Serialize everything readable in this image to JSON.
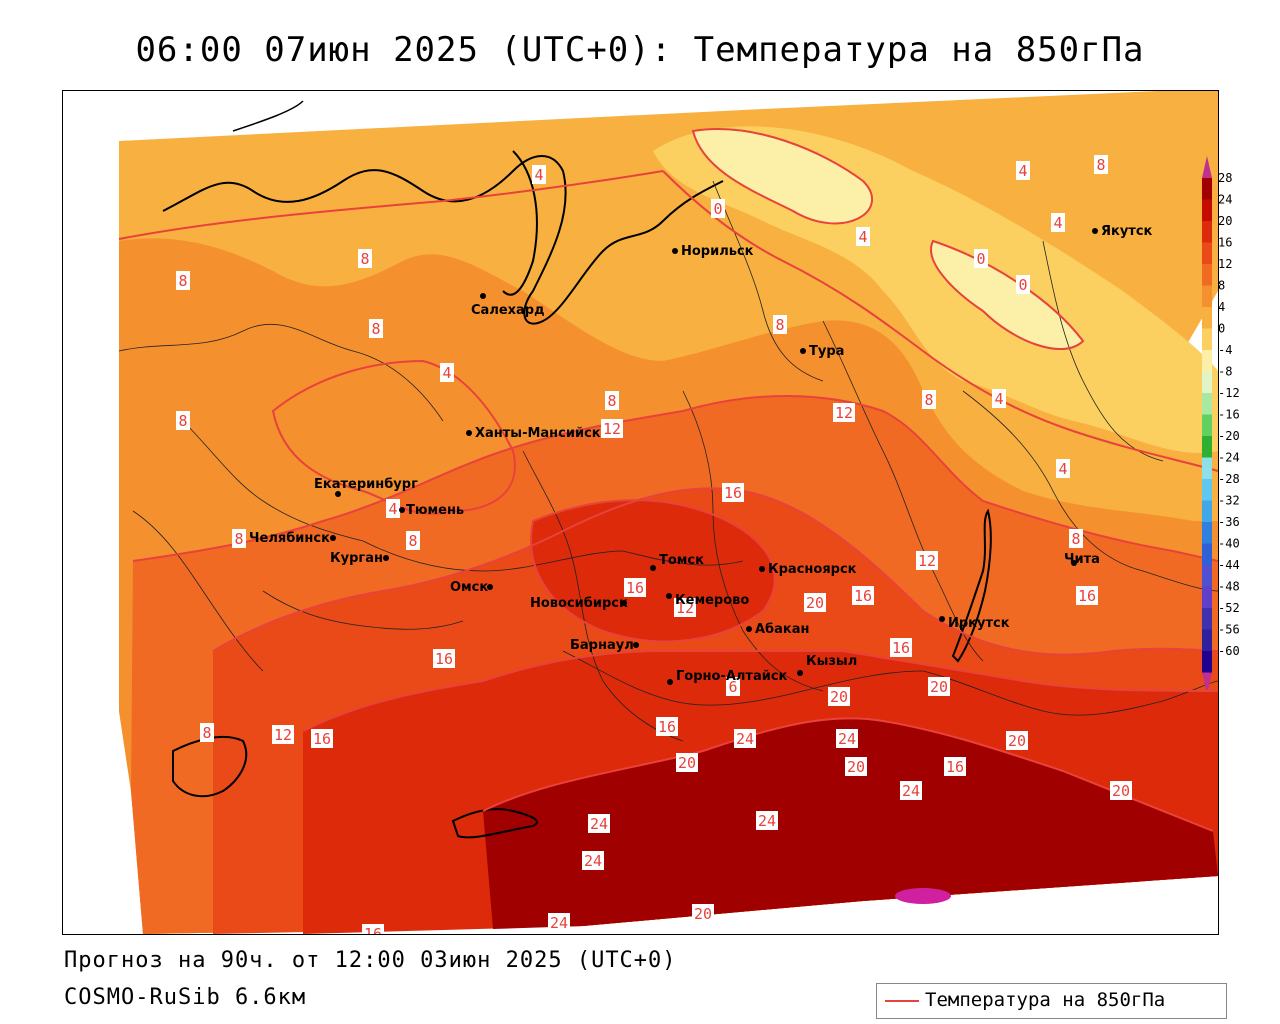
{
  "title": "06:00 07июн 2025 (UTC+0): Температура на 850гПа",
  "footer": {
    "forecast": "Прогноз на 90ч. от 12:00 03июн 2025 (UTC+0)",
    "model": "COSMO-RuSib 6.6км"
  },
  "legend": {
    "label": "Температура на 850гПа",
    "line_color": "#e8423c"
  },
  "colorbar": {
    "ticks": [
      "28",
      "24",
      "20",
      "16",
      "12",
      "8",
      "4",
      "0",
      "-4",
      "-8",
      "-12",
      "-16",
      "-20",
      "-24",
      "-28",
      "-32",
      "-36",
      "-40",
      "-44",
      "-48",
      "-52",
      "-56",
      "-60"
    ],
    "colors": [
      "#a10000",
      "#c40c00",
      "#dc2a0a",
      "#ea4a18",
      "#f06a24",
      "#f5902e",
      "#f8b040",
      "#fbd060",
      "#fcf0a8",
      "#e0f4c8",
      "#a8e8a0",
      "#60d060",
      "#30b030",
      "#8ee0e8",
      "#60c8f0",
      "#40a8e8",
      "#3080e0",
      "#3060d8",
      "#5050d0",
      "#6040c8",
      "#4030b0",
      "#3020a0",
      "#200090",
      "#c03090"
    ]
  },
  "cities": [
    {
      "name": "Норильск"
    },
    {
      "name": "Салехард"
    },
    {
      "name": "Якутск"
    },
    {
      "name": "Тура"
    },
    {
      "name": "Ханты-Мансийск"
    },
    {
      "name": "Екатеринбург"
    },
    {
      "name": "Тюмень"
    },
    {
      "name": "Челябинск"
    },
    {
      "name": "Курган"
    },
    {
      "name": "Омск"
    },
    {
      "name": "Новосибирск"
    },
    {
      "name": "Томск"
    },
    {
      "name": "Кемерово"
    },
    {
      "name": "Красноярск"
    },
    {
      "name": "Барнаул"
    },
    {
      "name": "Абакан"
    },
    {
      "name": "Горно-Алтайск"
    },
    {
      "name": "Кызыл"
    },
    {
      "name": "Иркутск"
    },
    {
      "name": "Чита"
    }
  ],
  "contour_labels": [
    {
      "text": "4"
    },
    {
      "text": "0"
    },
    {
      "text": "4"
    },
    {
      "text": "8"
    },
    {
      "text": "8"
    },
    {
      "text": "4"
    },
    {
      "text": "8"
    },
    {
      "text": "0"
    },
    {
      "text": "0"
    },
    {
      "text": "4"
    },
    {
      "text": "8"
    },
    {
      "text": "8"
    },
    {
      "text": "8"
    },
    {
      "text": "8"
    },
    {
      "text": "8"
    },
    {
      "text": "4"
    },
    {
      "text": "12"
    },
    {
      "text": "12"
    },
    {
      "text": "16"
    },
    {
      "text": "4"
    },
    {
      "text": "8"
    },
    {
      "text": "8"
    },
    {
      "text": "12"
    },
    {
      "text": "4"
    },
    {
      "text": "4"
    },
    {
      "text": "16"
    },
    {
      "text": "12"
    },
    {
      "text": "20"
    },
    {
      "text": "16"
    },
    {
      "text": "16"
    },
    {
      "text": "16"
    },
    {
      "text": "20"
    },
    {
      "text": "6"
    },
    {
      "text": "20"
    },
    {
      "text": "16"
    },
    {
      "text": "24"
    },
    {
      "text": "24"
    },
    {
      "text": "20"
    },
    {
      "text": "20"
    },
    {
      "text": "16"
    },
    {
      "text": "8"
    },
    {
      "text": "12"
    },
    {
      "text": "16"
    },
    {
      "text": "20"
    },
    {
      "text": "24"
    },
    {
      "text": "24"
    },
    {
      "text": "24"
    },
    {
      "text": "20"
    },
    {
      "text": "24"
    },
    {
      "text": "16"
    },
    {
      "text": "24"
    },
    {
      "text": "20"
    },
    {
      "text": "8"
    },
    {
      "text": "16"
    }
  ]
}
